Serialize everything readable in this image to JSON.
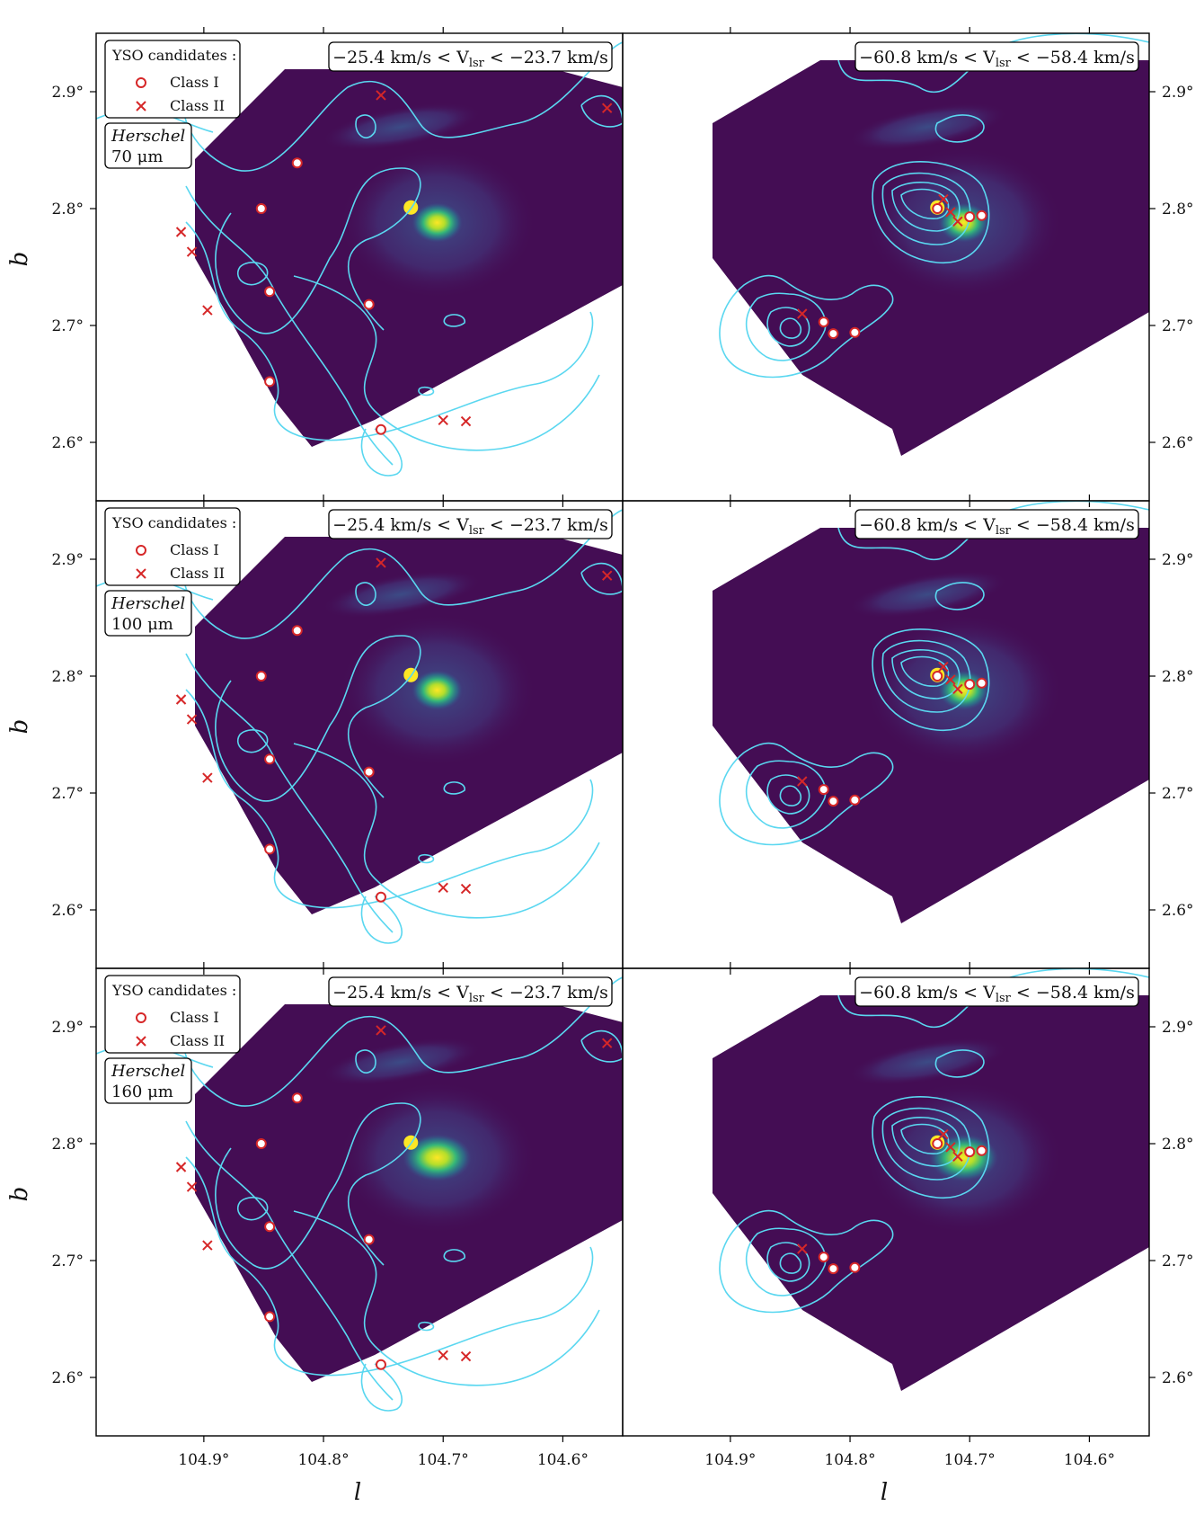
{
  "figure": {
    "xlabel": "l",
    "ylabel": "b",
    "colors": {
      "background_map": "#440d54",
      "contour": "#5ad7f0",
      "markers": "#d62728",
      "annotation_bg": "#ffffff"
    }
  },
  "legend": {
    "title": "YSO candidates :",
    "class1": "Class I",
    "class2": "Class II"
  },
  "chart_data": [
    {
      "type": "scatter",
      "image": "Herschel 70 μm",
      "survey": "Herschel",
      "wavelength": "70 μm",
      "velocity_range": "−25.4 km/s < V",
      "velocity_sub": "lsr",
      "velocity_tail": " < −23.7 km/s",
      "xlim": [
        104.99,
        104.55
      ],
      "ylim": [
        2.55,
        2.95
      ],
      "yticks": [
        "2.6°",
        "2.7°",
        "2.8°",
        "2.9°"
      ],
      "series": [
        {
          "name": "Class I",
          "x": [
            104.822,
            104.852,
            104.845,
            104.762,
            104.845,
            104.752
          ],
          "y": [
            2.839,
            2.8,
            2.729,
            2.718,
            2.652,
            2.611
          ]
        },
        {
          "name": "Class II",
          "x": [
            104.752,
            104.919,
            104.91,
            104.897,
            104.7,
            104.681,
            104.563
          ],
          "y": [
            2.897,
            2.78,
            2.763,
            2.713,
            2.619,
            2.618,
            2.886
          ]
        }
      ]
    },
    {
      "type": "scatter",
      "velocity_range": "−60.8 km/s < V",
      "velocity_sub": "lsr",
      "velocity_tail": " < −58.4 km/s",
      "xlim": [
        104.99,
        104.55
      ],
      "ylim": [
        2.55,
        2.95
      ],
      "xticks": [
        "104.9°",
        "104.8°",
        "104.7°",
        "104.6°"
      ],
      "yticks": [
        "2.6°",
        "2.7°",
        "2.8°",
        "2.9°"
      ],
      "series": [
        {
          "name": "Class I",
          "x": [
            104.727,
            104.7,
            104.69,
            104.822,
            104.814,
            104.796
          ],
          "y": [
            2.8,
            2.793,
            2.794,
            2.703,
            2.693,
            2.694
          ]
        },
        {
          "name": "Class II",
          "x": [
            104.722,
            104.716,
            104.71,
            104.84
          ],
          "y": [
            2.808,
            2.797,
            2.789,
            2.71
          ]
        }
      ]
    },
    {
      "type": "scatter",
      "image": "Herschel 100 μm",
      "survey": "Herschel",
      "wavelength": "100 μm",
      "velocity_range": "−25.4 km/s < V",
      "velocity_sub": "lsr",
      "velocity_tail": " < −23.7 km/s",
      "xlim": [
        104.99,
        104.55
      ],
      "ylim": [
        2.55,
        2.95
      ],
      "yticks": [
        "2.6°",
        "2.7°",
        "2.8°",
        "2.9°"
      ],
      "series": [
        {
          "name": "Class I",
          "x": [
            104.822,
            104.852,
            104.845,
            104.762,
            104.845,
            104.752
          ],
          "y": [
            2.839,
            2.8,
            2.729,
            2.718,
            2.652,
            2.611
          ]
        },
        {
          "name": "Class II",
          "x": [
            104.752,
            104.919,
            104.91,
            104.897,
            104.7,
            104.681,
            104.563
          ],
          "y": [
            2.897,
            2.78,
            2.763,
            2.713,
            2.619,
            2.618,
            2.886
          ]
        }
      ]
    },
    {
      "type": "scatter",
      "velocity_range": "−60.8 km/s < V",
      "velocity_sub": "lsr",
      "velocity_tail": " < −58.4 km/s",
      "xlim": [
        104.99,
        104.55
      ],
      "ylim": [
        2.55,
        2.95
      ],
      "yticks": [
        "2.6°",
        "2.7°",
        "2.8°",
        "2.9°"
      ],
      "series": [
        {
          "name": "Class I",
          "x": [
            104.727,
            104.7,
            104.69,
            104.822,
            104.814,
            104.796
          ],
          "y": [
            2.8,
            2.793,
            2.794,
            2.703,
            2.693,
            2.694
          ]
        },
        {
          "name": "Class II",
          "x": [
            104.722,
            104.716,
            104.71,
            104.84
          ],
          "y": [
            2.808,
            2.797,
            2.789,
            2.71
          ]
        }
      ]
    },
    {
      "type": "scatter",
      "image": "Herschel 160 μm",
      "survey": "Herschel",
      "wavelength": "160 μm",
      "velocity_range": "−25.4 km/s < V",
      "velocity_sub": "lsr",
      "velocity_tail": " < −23.7 km/s",
      "xlim": [
        104.99,
        104.55
      ],
      "ylim": [
        2.55,
        2.95
      ],
      "xticks": [
        "104.9°",
        "104.8°",
        "104.7°",
        "104.6°"
      ],
      "yticks": [
        "2.6°",
        "2.7°",
        "2.8°",
        "2.9°"
      ],
      "series": [
        {
          "name": "Class I",
          "x": [
            104.822,
            104.852,
            104.845,
            104.762,
            104.845,
            104.752
          ],
          "y": [
            2.839,
            2.8,
            2.729,
            2.718,
            2.652,
            2.611
          ]
        },
        {
          "name": "Class II",
          "x": [
            104.752,
            104.919,
            104.91,
            104.897,
            104.7,
            104.681,
            104.563
          ],
          "y": [
            2.897,
            2.78,
            2.763,
            2.713,
            2.619,
            2.618,
            2.886
          ]
        }
      ]
    },
    {
      "type": "scatter",
      "velocity_range": "−60.8 km/s < V",
      "velocity_sub": "lsr",
      "velocity_tail": " < −58.4 km/s",
      "xlim": [
        104.99,
        104.55
      ],
      "ylim": [
        2.55,
        2.95
      ],
      "xticks": [
        "104.9°",
        "104.8°",
        "104.7°",
        "104.6°"
      ],
      "yticks": [
        "2.6°",
        "2.7°",
        "2.8°",
        "2.9°"
      ],
      "series": [
        {
          "name": "Class I",
          "x": [
            104.727,
            104.7,
            104.69,
            104.822,
            104.814,
            104.796
          ],
          "y": [
            2.8,
            2.793,
            2.794,
            2.703,
            2.693,
            2.694
          ]
        },
        {
          "name": "Class II",
          "x": [
            104.722,
            104.716,
            104.71,
            104.84
          ],
          "y": [
            2.808,
            2.797,
            2.789,
            2.71
          ]
        }
      ]
    }
  ]
}
